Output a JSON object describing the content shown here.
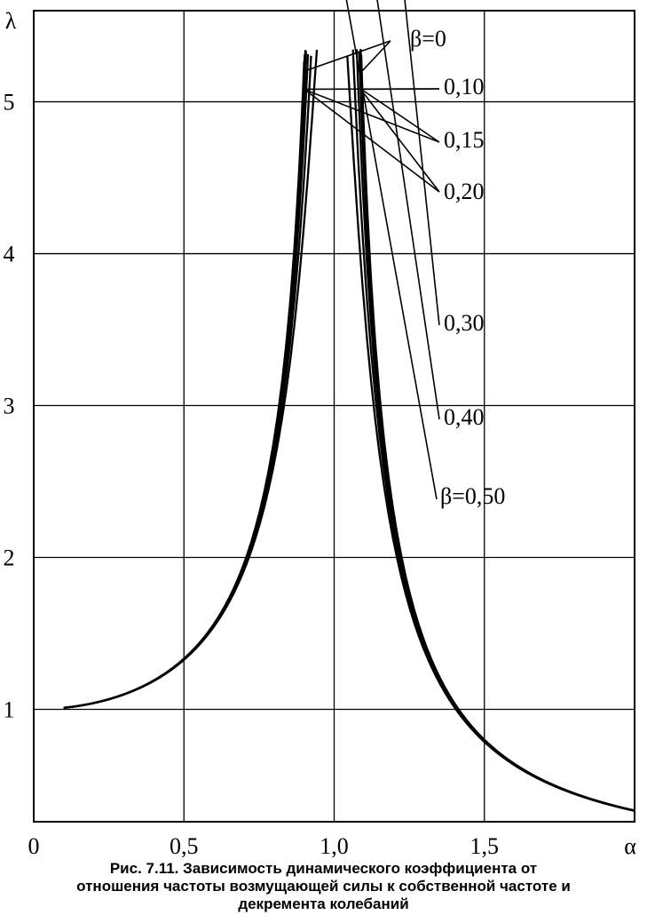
{
  "chart_data": {
    "type": "line",
    "title": "",
    "xlabel": "α",
    "ylabel": "λ",
    "xlim": [
      0,
      2.0
    ],
    "ylim": [
      0.26,
      5.6
    ],
    "grid": true,
    "x_ticks": [
      {
        "value": 0,
        "label": "0"
      },
      {
        "value": 0.5,
        "label": "0,5"
      },
      {
        "value": 1.0,
        "label": "1,0"
      },
      {
        "value": 1.5,
        "label": "1,5"
      }
    ],
    "y_ticks": [
      {
        "value": 1,
        "label": "1"
      },
      {
        "value": 2,
        "label": "2"
      },
      {
        "value": 3,
        "label": "3"
      },
      {
        "value": 4,
        "label": "4"
      },
      {
        "value": 5,
        "label": "5"
      }
    ],
    "series": [
      {
        "name": "β=0",
        "beta": 0.0
      },
      {
        "name": "0,10",
        "beta": 0.1
      },
      {
        "name": "0,15",
        "beta": 0.15
      },
      {
        "name": "0,20",
        "beta": 0.2
      },
      {
        "name": "0,30",
        "beta": 0.3
      },
      {
        "name": "0,40",
        "beta": 0.4
      },
      {
        "name": "β=0,50",
        "beta": 0.5
      }
    ],
    "x_range": [
      0.1,
      2.0
    ],
    "peak_clip": 5.35
  },
  "caption": {
    "line1": "Рис. 7.11. Зависимость динамического коэффициента от",
    "line2": "отношения частоты возмущающей силы к собственной частоте и",
    "line3": "декремента колебаний"
  }
}
